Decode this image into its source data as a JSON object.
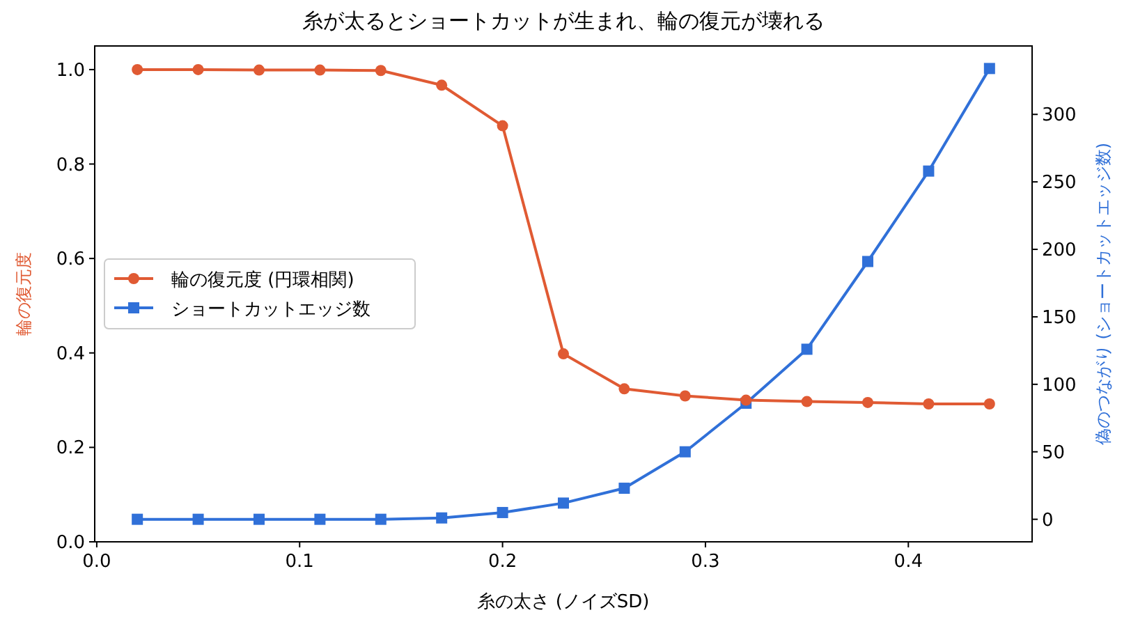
{
  "chart_data": {
    "type": "line",
    "title": "糸が太るとショートカットが生まれ、輪の復元が壊れる",
    "xlabel": "糸の太さ (ノイズSD)",
    "ylabel": "輪の復元度",
    "y2label": "偽のつながり (ショートカットエッジ数)",
    "x": [
      0.02,
      0.05,
      0.08,
      0.11,
      0.14,
      0.17,
      0.2,
      0.23,
      0.26,
      0.29,
      0.32,
      0.35,
      0.38,
      0.41,
      0.44
    ],
    "series": [
      {
        "name": "輪の復元度 (円環相関)",
        "color": "#e05a33",
        "marker": "circle",
        "values": [
          1.0,
          1.0,
          0.999,
          0.999,
          0.998,
          0.967,
          0.881,
          0.398,
          0.324,
          0.309,
          0.3,
          0.297,
          0.295,
          0.292,
          0.292
        ]
      },
      {
        "name": "ショートカットエッジ数",
        "color": "#3070d8",
        "marker": "square",
        "axis": "y2",
        "values": [
          0,
          0,
          0,
          0,
          0,
          1,
          5,
          12,
          23,
          50,
          86,
          126,
          191,
          258,
          334
        ]
      }
    ],
    "xlim": [
      -0.001,
      0.461
    ],
    "xticks": [
      {
        "value": 0,
        "label": "0.0"
      },
      0.1,
      0.2,
      0.3,
      0.4
    ],
    "ylim": [
      0,
      1.05
    ],
    "yticks": [
      {
        "value": 0,
        "label": "0.0"
      },
      0.2,
      0.4,
      0.6,
      0.8,
      {
        "value": 1,
        "label": "1.0"
      }
    ],
    "y2lim": [
      -16.7,
      350.7
    ],
    "y2ticks": [
      0,
      50,
      100,
      150,
      200,
      250,
      300
    ],
    "legend": "center left"
  }
}
